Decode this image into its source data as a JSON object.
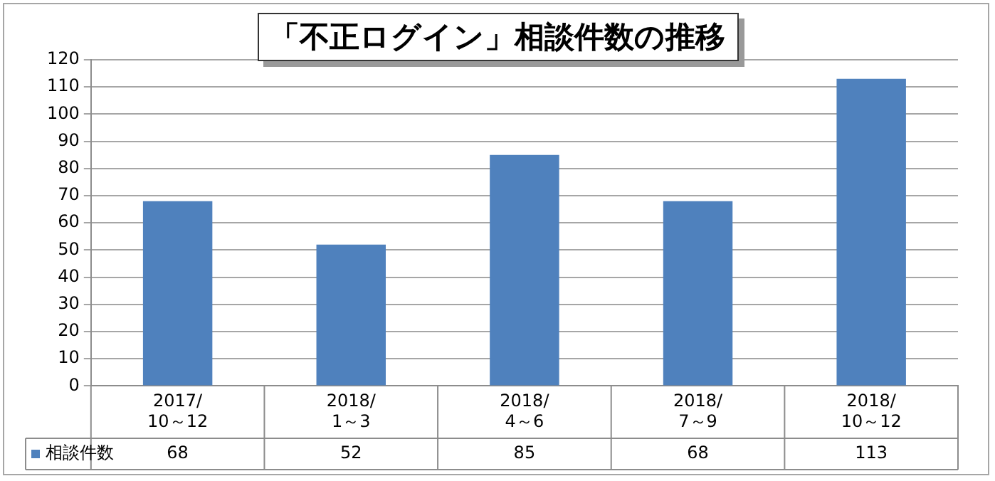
{
  "chart_data": {
    "type": "bar",
    "title": "「不正ログイン」相談件数の推移",
    "categories": [
      "2017/10～12",
      "2018/1～3",
      "2018/4～6",
      "2018/7～9",
      "2018/10～12"
    ],
    "series": [
      {
        "name": "相談件数",
        "color": "#4f81bd",
        "values": [
          68,
          52,
          85,
          68,
          113
        ]
      }
    ],
    "ylim": [
      0,
      120
    ],
    "yticks": [
      0,
      10,
      20,
      30,
      40,
      50,
      60,
      70,
      80,
      90,
      100,
      110,
      120
    ],
    "grid": "y",
    "legend": "bottom",
    "data_labels": true
  }
}
